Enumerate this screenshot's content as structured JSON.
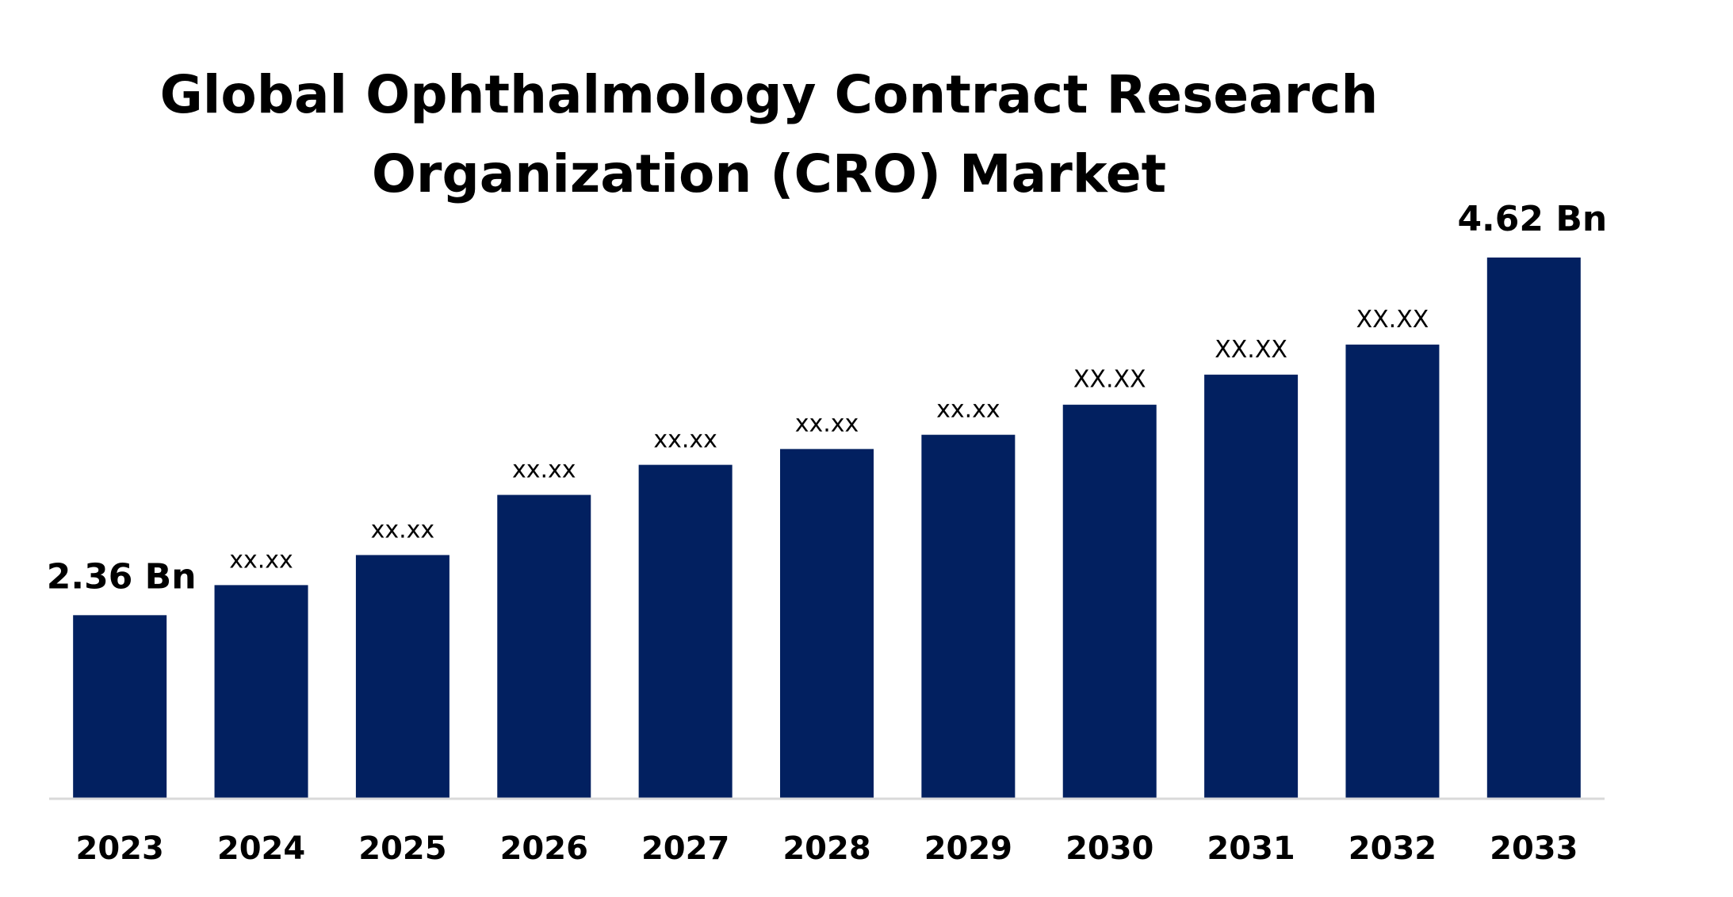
{
  "chart_data": {
    "type": "bar",
    "title": "Global Ophthalmology Contract Research Organization (CRO) Market",
    "title_lines": [
      "Global Ophthalmology Contract Research",
      "Organization (CRO) Market"
    ],
    "xlabel": "",
    "ylabel": "",
    "categories": [
      "2023",
      "2024",
      "2025",
      "2026",
      "2027",
      "2028",
      "2029",
      "2030",
      "2031",
      "2032",
      "2033"
    ],
    "values": [
      2.36,
      2.55,
      2.74,
      3.12,
      3.31,
      3.41,
      3.5,
      3.69,
      3.88,
      4.07,
      4.62
    ],
    "value_labels": [
      "2.36 Bn",
      "xx.xx",
      "xx.xx",
      "xx.xx",
      "xx.xx",
      "xx.xx",
      "xx.xx",
      "XX.XX",
      "XX.XX",
      "XX.XX",
      "4.62 Bn"
    ],
    "emphasized_labels": [
      0,
      10
    ],
    "ylim": [
      1.2,
      4.62
    ],
    "grid": false,
    "legend": "none",
    "bar_color": "#022060"
  }
}
